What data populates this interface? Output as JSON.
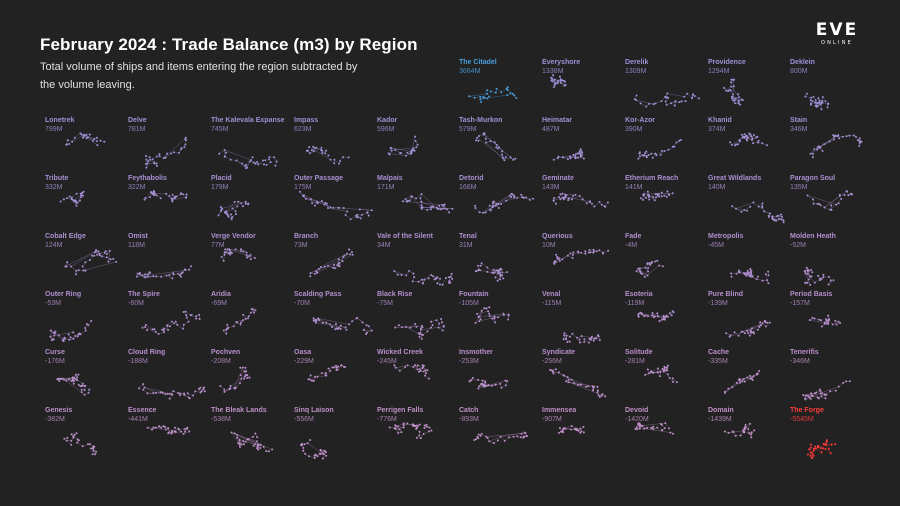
{
  "title": "February 2024 : Trade Balance (m3) by Region",
  "subtitle": "Total volume of ships and items entering the region subtracted by the volume leaving.",
  "logo": {
    "word": "EVE",
    "sub": "ONLINE"
  },
  "colors": {
    "background": "#222222",
    "highest": "#4a9fe0",
    "positive": "#9b90d8",
    "negative": "#c28fc6",
    "lowest": "#ff3b3b"
  },
  "chart_data": {
    "type": "small-multiples",
    "value_unit": "m3",
    "regions": [
      {
        "name": "The Citadel",
        "label": "3664M",
        "value": 3664
      },
      {
        "name": "Everyshore",
        "label": "1338M",
        "value": 1338
      },
      {
        "name": "Derelik",
        "label": "1309M",
        "value": 1309
      },
      {
        "name": "Providence",
        "label": "1294M",
        "value": 1294
      },
      {
        "name": "Deklein",
        "label": "800M",
        "value": 800
      },
      {
        "name": "Lonetrek",
        "label": "799M",
        "value": 799
      },
      {
        "name": "Delve",
        "label": "781M",
        "value": 781
      },
      {
        "name": "The Kalevala Expanse",
        "label": "745M",
        "value": 745
      },
      {
        "name": "Impass",
        "label": "623M",
        "value": 623
      },
      {
        "name": "Kador",
        "label": "596M",
        "value": 596
      },
      {
        "name": "Tash-Murkon",
        "label": "579M",
        "value": 579
      },
      {
        "name": "Heimatar",
        "label": "487M",
        "value": 487
      },
      {
        "name": "Kor-Azor",
        "label": "390M",
        "value": 390
      },
      {
        "name": "Khanid",
        "label": "374M",
        "value": 374
      },
      {
        "name": "Stain",
        "label": "346M",
        "value": 346
      },
      {
        "name": "Tribute",
        "label": "332M",
        "value": 332
      },
      {
        "name": "Feythabolis",
        "label": "322M",
        "value": 322
      },
      {
        "name": "Placid",
        "label": "179M",
        "value": 179
      },
      {
        "name": "Outer Passage",
        "label": "175M",
        "value": 175
      },
      {
        "name": "Malpais",
        "label": "171M",
        "value": 171
      },
      {
        "name": "Detorid",
        "label": "166M",
        "value": 166
      },
      {
        "name": "Geminate",
        "label": "143M",
        "value": 143
      },
      {
        "name": "Etherium Reach",
        "label": "141M",
        "value": 141
      },
      {
        "name": "Great Wildlands",
        "label": "140M",
        "value": 140
      },
      {
        "name": "Paragon Soul",
        "label": "135M",
        "value": 135
      },
      {
        "name": "Cobalt Edge",
        "label": "124M",
        "value": 124
      },
      {
        "name": "Omist",
        "label": "118M",
        "value": 118
      },
      {
        "name": "Verge Vendor",
        "label": "77M",
        "value": 77
      },
      {
        "name": "Branch",
        "label": "73M",
        "value": 73
      },
      {
        "name": "Vale of the Silent",
        "label": "34M",
        "value": 34
      },
      {
        "name": "Tenal",
        "label": "31M",
        "value": 31
      },
      {
        "name": "Querious",
        "label": "10M",
        "value": 10
      },
      {
        "name": "Fade",
        "label": "-4M",
        "value": -4
      },
      {
        "name": "Metropolis",
        "label": "-45M",
        "value": -45
      },
      {
        "name": "Molden Heath",
        "label": "-52M",
        "value": -52
      },
      {
        "name": "Outer Ring",
        "label": "-53M",
        "value": -53
      },
      {
        "name": "The Spire",
        "label": "-60M",
        "value": -60
      },
      {
        "name": "Aridia",
        "label": "-69M",
        "value": -69
      },
      {
        "name": "Scalding Pass",
        "label": "-70M",
        "value": -70
      },
      {
        "name": "Black Rise",
        "label": "-75M",
        "value": -75
      },
      {
        "name": "Fountain",
        "label": "-105M",
        "value": -105
      },
      {
        "name": "Venal",
        "label": "-115M",
        "value": -115
      },
      {
        "name": "Esoteria",
        "label": "-119M",
        "value": -119
      },
      {
        "name": "Pure Blind",
        "label": "-139M",
        "value": -139
      },
      {
        "name": "Period Basis",
        "label": "-157M",
        "value": -157
      },
      {
        "name": "Curse",
        "label": "-176M",
        "value": -176
      },
      {
        "name": "Cloud Ring",
        "label": "-188M",
        "value": -188
      },
      {
        "name": "Pochven",
        "label": "-208M",
        "value": -208
      },
      {
        "name": "Oasa",
        "label": "-229M",
        "value": -229
      },
      {
        "name": "Wicked Creek",
        "label": "-245M",
        "value": -245
      },
      {
        "name": "Insmother",
        "label": "-253M",
        "value": -253
      },
      {
        "name": "Syndicate",
        "label": "-256M",
        "value": -256
      },
      {
        "name": "Solitude",
        "label": "-281M",
        "value": -281
      },
      {
        "name": "Cache",
        "label": "-335M",
        "value": -335
      },
      {
        "name": "Tenerifis",
        "label": "-346M",
        "value": -346
      },
      {
        "name": "Genesis",
        "label": "-382M",
        "value": -382
      },
      {
        "name": "Essence",
        "label": "-441M",
        "value": -441
      },
      {
        "name": "The Bleak Lands",
        "label": "-538M",
        "value": -538
      },
      {
        "name": "Sinq Laison",
        "label": "-556M",
        "value": -556
      },
      {
        "name": "Perrigen Falls",
        "label": "-776M",
        "value": -776
      },
      {
        "name": "Catch",
        "label": "-893M",
        "value": -893
      },
      {
        "name": "Immensea",
        "label": "-907M",
        "value": -907
      },
      {
        "name": "Devoid",
        "label": "-1420M",
        "value": -1420
      },
      {
        "name": "Domain",
        "label": "-1439M",
        "value": -1439
      },
      {
        "name": "The Forge",
        "label": "-5545M",
        "value": -5545
      }
    ]
  }
}
